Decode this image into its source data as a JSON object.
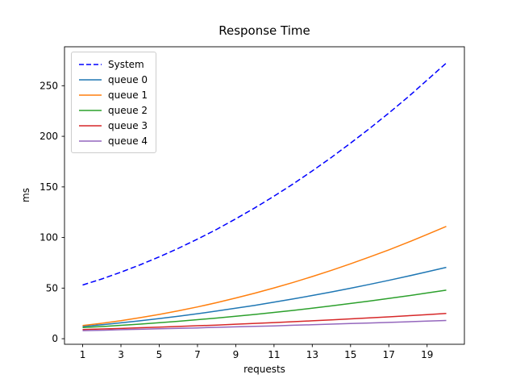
{
  "figure": {
    "background": "#ffffff"
  },
  "chart_data": {
    "type": "line",
    "title": "Response Time",
    "xlabel": "requests",
    "ylabel": "ms",
    "grid": false,
    "legend_position": "upper left",
    "xlim": [
      0.05,
      20.95
    ],
    "ylim": [
      -5.5,
      288.5
    ],
    "xticks": [
      1,
      3,
      5,
      7,
      9,
      11,
      13,
      15,
      17,
      19
    ],
    "yticks": [
      0,
      50,
      100,
      150,
      200,
      250
    ],
    "x": [
      1,
      2,
      3,
      4,
      5,
      6,
      7,
      8,
      9,
      10,
      11,
      12,
      13,
      14,
      15,
      16,
      17,
      18,
      19,
      20
    ],
    "series": [
      {
        "name": "System",
        "color": "#0000ff",
        "dash": "dashed",
        "values": [
          53.1,
          59.0,
          65.7,
          73.0,
          80.9,
          89.3,
          98.4,
          108.0,
          118.5,
          129.3,
          140.9,
          153.0,
          165.8,
          179.2,
          193.3,
          207.8,
          223.0,
          238.8,
          255.5,
          272.4
        ]
      },
      {
        "name": "queue 0",
        "color": "#1f77b4",
        "dash": "solid",
        "values": [
          12.1,
          13.8,
          15.7,
          17.7,
          19.9,
          22.2,
          24.7,
          27.3,
          30.1,
          33.0,
          36.1,
          39.3,
          42.7,
          46.2,
          49.9,
          53.7,
          57.7,
          61.8,
          66.1,
          70.5
        ]
      },
      {
        "name": "queue 1",
        "color": "#ff7f0e",
        "dash": "solid",
        "values": [
          13.0,
          15.2,
          17.8,
          20.8,
          24.0,
          27.6,
          31.4,
          35.6,
          40.2,
          45.0,
          50.2,
          55.6,
          61.4,
          67.6,
          74.0,
          80.8,
          87.8,
          95.2,
          103.0,
          111.0
        ]
      },
      {
        "name": "queue 2",
        "color": "#2ca02c",
        "dash": "solid",
        "values": [
          11.0,
          12.0,
          13.2,
          14.4,
          15.8,
          17.2,
          18.8,
          20.4,
          22.2,
          24.0,
          26.0,
          28.0,
          30.2,
          32.4,
          34.8,
          37.2,
          39.8,
          42.4,
          45.2,
          48.0
        ]
      },
      {
        "name": "queue 3",
        "color": "#d62728",
        "dash": "solid",
        "values": [
          9.0,
          9.6,
          10.1,
          10.8,
          11.4,
          12.1,
          12.8,
          13.5,
          14.3,
          15.1,
          15.9,
          16.8,
          17.7,
          18.6,
          19.6,
          20.6,
          21.6,
          22.7,
          23.8,
          24.9
        ]
      },
      {
        "name": "queue 4",
        "color": "#9467bd",
        "dash": "solid",
        "values": [
          8.0,
          8.4,
          8.9,
          9.3,
          9.8,
          10.2,
          10.7,
          11.2,
          11.7,
          12.2,
          12.7,
          13.3,
          13.8,
          14.4,
          15.0,
          15.5,
          16.1,
          16.7,
          17.4,
          18.0
        ]
      }
    ]
  }
}
